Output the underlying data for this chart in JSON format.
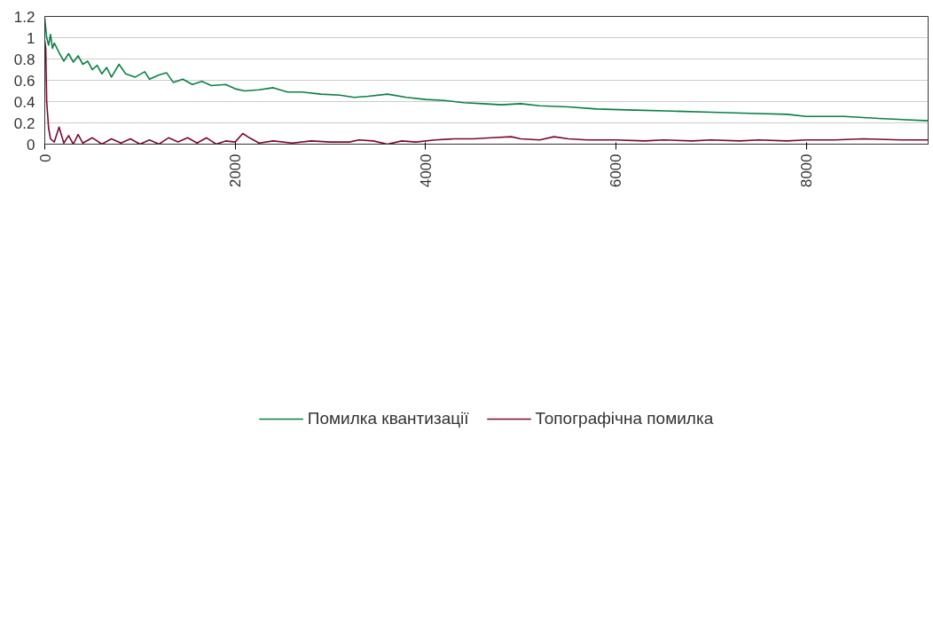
{
  "chart_data": {
    "type": "line",
    "xlim": [
      0,
      9280
    ],
    "xticks": [
      0,
      2000,
      4000,
      6000,
      8000
    ],
    "ylim": [
      0,
      1.2
    ],
    "yticks": [
      0,
      0.2,
      0.4,
      0.6,
      0.8,
      1,
      1.2
    ],
    "grid": "y",
    "legend": "bottom",
    "line_style": "solid",
    "series": [
      {
        "name": "Помилка квантизації",
        "color": "#0a7f45",
        "x": [
          0,
          20,
          40,
          60,
          80,
          100,
          150,
          200,
          250,
          300,
          350,
          400,
          450,
          500,
          550,
          600,
          650,
          700,
          780,
          850,
          950,
          1050,
          1100,
          1200,
          1280,
          1350,
          1450,
          1550,
          1650,
          1750,
          1900,
          2000,
          2100,
          2250,
          2400,
          2550,
          2700,
          2900,
          3100,
          3250,
          3400,
          3600,
          3800,
          4000,
          4200,
          4400,
          4600,
          4800,
          5000,
          5200,
          5500,
          5800,
          6200,
          6600,
          7000,
          7400,
          7800,
          8000,
          8400,
          8800,
          9280
        ],
        "values": [
          1.18,
          1.0,
          0.93,
          1.03,
          0.9,
          0.95,
          0.86,
          0.78,
          0.85,
          0.77,
          0.83,
          0.75,
          0.78,
          0.7,
          0.74,
          0.66,
          0.72,
          0.63,
          0.75,
          0.66,
          0.63,
          0.68,
          0.61,
          0.65,
          0.67,
          0.58,
          0.61,
          0.56,
          0.59,
          0.55,
          0.56,
          0.52,
          0.5,
          0.51,
          0.53,
          0.49,
          0.49,
          0.47,
          0.46,
          0.44,
          0.45,
          0.47,
          0.44,
          0.42,
          0.41,
          0.39,
          0.38,
          0.37,
          0.38,
          0.36,
          0.35,
          0.33,
          0.32,
          0.31,
          0.3,
          0.29,
          0.28,
          0.26,
          0.26,
          0.24,
          0.22
        ]
      },
      {
        "name": "Топографічна помилка",
        "color": "#7a0a2f",
        "x": [
          0,
          10,
          20,
          40,
          60,
          100,
          150,
          200,
          250,
          300,
          350,
          400,
          500,
          600,
          700,
          800,
          900,
          1000,
          1100,
          1200,
          1300,
          1400,
          1500,
          1600,
          1700,
          1800,
          1900,
          2000,
          2080,
          2150,
          2250,
          2400,
          2600,
          2800,
          3000,
          3200,
          3300,
          3450,
          3600,
          3750,
          3900,
          4100,
          4300,
          4500,
          4700,
          4900,
          5000,
          5200,
          5350,
          5500,
          5700,
          6000,
          6300,
          6500,
          6800,
          7000,
          7300,
          7500,
          7800,
          8000,
          8300,
          8600,
          9000,
          9280
        ],
        "values": [
          0.97,
          0.9,
          0.4,
          0.15,
          0.05,
          0.02,
          0.16,
          0.01,
          0.08,
          0.0,
          0.09,
          0.01,
          0.06,
          0.0,
          0.05,
          0.01,
          0.05,
          0.0,
          0.04,
          0.0,
          0.06,
          0.02,
          0.06,
          0.01,
          0.06,
          0.0,
          0.03,
          0.02,
          0.1,
          0.06,
          0.01,
          0.03,
          0.01,
          0.03,
          0.02,
          0.02,
          0.04,
          0.03,
          0.0,
          0.03,
          0.02,
          0.04,
          0.05,
          0.05,
          0.06,
          0.07,
          0.05,
          0.04,
          0.07,
          0.05,
          0.04,
          0.04,
          0.03,
          0.04,
          0.03,
          0.04,
          0.03,
          0.04,
          0.03,
          0.04,
          0.04,
          0.05,
          0.04,
          0.04
        ]
      }
    ]
  }
}
